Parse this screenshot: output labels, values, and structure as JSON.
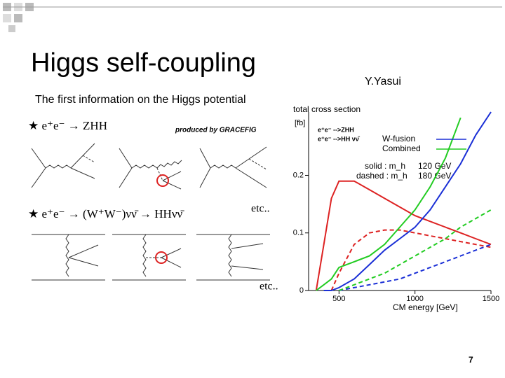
{
  "slide": {
    "title": "Higgs self-coupling",
    "author": "Y.Yasui",
    "subtitle": "The first information on  the Higgs potential",
    "page_number": "7"
  },
  "diagrams": {
    "process_1": "★ e⁺e⁻ → ZHH",
    "credit": "produced by GRACEFIG",
    "process_2": "★ e⁺e⁻ → (W⁺W⁻)νν̄ → HHνν̄",
    "etc_1": "etc..",
    "etc_2": "etc.."
  },
  "chart_data": {
    "type": "line",
    "y_label": "total cross section",
    "y_unit": "[fb]",
    "x_label": "CM energy  [GeV]",
    "x": [
      350,
      400,
      450,
      500,
      600,
      700,
      800,
      900,
      1000,
      1100,
      1200,
      1300,
      1400,
      1500
    ],
    "xlim": [
      300,
      1500
    ],
    "xticks": [
      500,
      1000,
      1500
    ],
    "ylim": [
      0,
      0.31
    ],
    "yticks": [
      0,
      0.1,
      0.2
    ],
    "series": [
      {
        "color": "#dd2222",
        "dash": false,
        "values": [
          0,
          0.08,
          0.16,
          0.19,
          0.19,
          0.175,
          0.16,
          0.145,
          0.13,
          0.12,
          0.11,
          0.1,
          0.09,
          0.08
        ]
      },
      {
        "color": "#dd2222",
        "dash": true,
        "values": [
          null,
          null,
          0,
          0.03,
          0.08,
          0.1,
          0.105,
          0.105,
          0.1,
          0.095,
          0.09,
          0.085,
          0.08,
          0.075
        ]
      },
      {
        "color": "#1a2fd6",
        "dash": false,
        "values": [
          null,
          0,
          0,
          0.005,
          0.02,
          0.045,
          0.07,
          0.09,
          0.11,
          0.14,
          0.18,
          0.22,
          0.27,
          0.31
        ]
      },
      {
        "color": "#22cc22",
        "dash": false,
        "values": [
          0,
          0.01,
          0.02,
          0.04,
          0.05,
          0.06,
          0.08,
          0.11,
          0.14,
          0.18,
          0.23,
          0.3,
          null,
          null
        ]
      },
      {
        "color": "#1a2fd6",
        "dash": true,
        "values": [
          null,
          null,
          null,
          0,
          0.005,
          0.01,
          0.015,
          0.02,
          0.03,
          0.04,
          0.05,
          0.06,
          0.07,
          0.08
        ]
      },
      {
        "color": "#22cc22",
        "dash": true,
        "values": [
          null,
          null,
          null,
          0,
          0.01,
          0.02,
          0.03,
          0.045,
          0.06,
          0.075,
          0.09,
          0.11,
          0.125,
          0.14
        ]
      }
    ],
    "legend": [
      {
        "text": "e⁺e⁻ -->ZHH"
      },
      {
        "text": "e⁺e⁻ -->HH  νν̄"
      },
      {
        "text": "W-fusion",
        "color": "#1a2fd6"
      },
      {
        "text": "Combined",
        "color": "#22cc22"
      }
    ],
    "annotations": [
      "solid :  m_h",
      "120 GeV",
      "dashed : m_h",
      "180 GeV"
    ]
  }
}
